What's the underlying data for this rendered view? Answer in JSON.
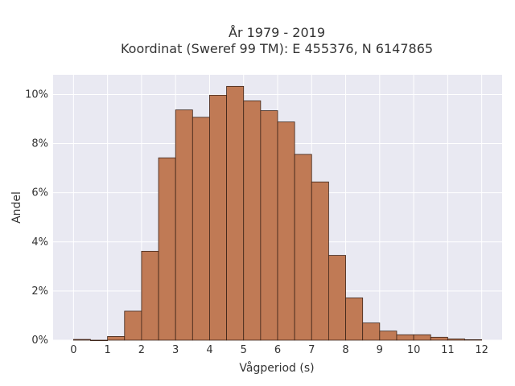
{
  "chart_data": {
    "type": "bar",
    "title_line1": "År 1979 - 2019",
    "title_line2": "Koordinat (Sweref 99 TM): E 455376, N 6147865",
    "xlabel": "Vågperiod (s)",
    "ylabel": "Andel",
    "bin_width": 0.5,
    "bin_starts": [
      0,
      0.5,
      1,
      1.5,
      2,
      2.5,
      3,
      3.5,
      4,
      4.5,
      5,
      5.5,
      6,
      6.5,
      7,
      7.5,
      8,
      8.5,
      9,
      9.5,
      10,
      10.5,
      11,
      11.5
    ],
    "values": [
      0.03,
      0.0,
      0.15,
      1.18,
      3.62,
      7.42,
      9.37,
      9.07,
      9.97,
      10.33,
      9.74,
      9.34,
      8.88,
      7.56,
      6.44,
      3.45,
      1.72,
      0.7,
      0.37,
      0.22,
      0.22,
      0.12,
      0.05,
      0.02
    ],
    "xlim": [
      -0.6,
      12.6
    ],
    "ylim": [
      0,
      10.8
    ],
    "x_ticks": [
      0,
      1,
      2,
      3,
      4,
      5,
      6,
      7,
      8,
      9,
      10,
      11,
      12
    ],
    "x_tick_labels": [
      "0",
      "1",
      "2",
      "3",
      "4",
      "5",
      "6",
      "7",
      "8",
      "9",
      "10",
      "11",
      "12"
    ],
    "y_ticks": [
      0,
      2,
      4,
      6,
      8,
      10
    ],
    "y_tick_labels": [
      "0%",
      "2%",
      "4%",
      "6%",
      "8%",
      "10%"
    ],
    "grid": true,
    "colors": {
      "bar_fill": "#c07a55",
      "bar_stroke": "#3d2418",
      "plot_bg": "#e9e9f2",
      "grid": "#ffffff"
    }
  }
}
